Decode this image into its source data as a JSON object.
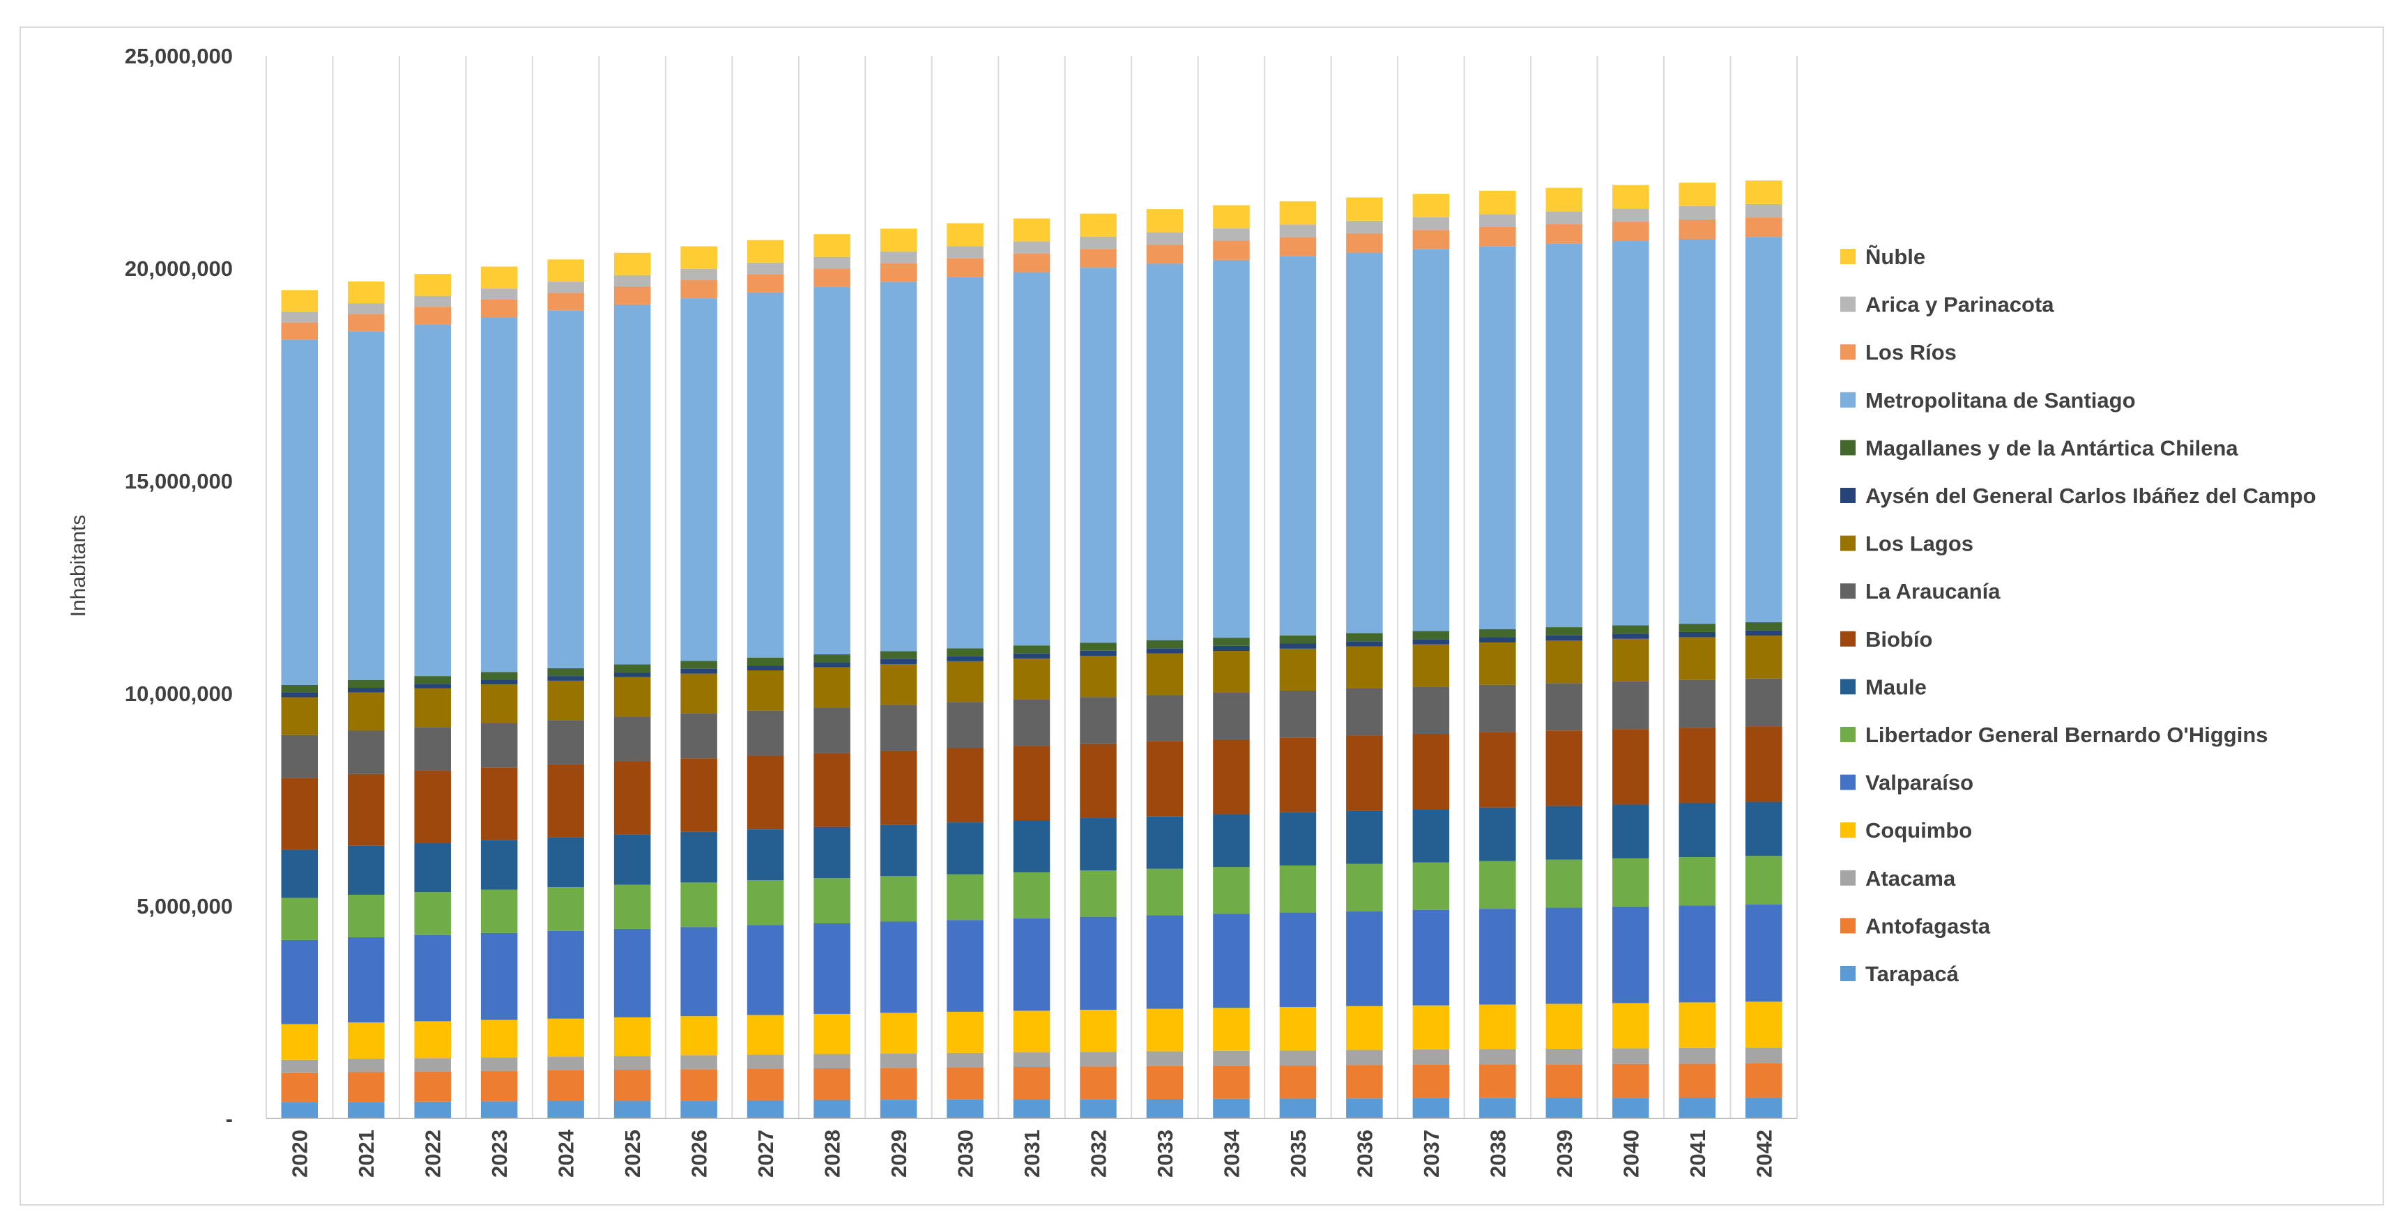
{
  "chart_data": {
    "type": "bar",
    "stacked": true,
    "title": "",
    "xlabel": "",
    "ylabel": "Inhabitants",
    "ylim": [
      0,
      25000000
    ],
    "yticks": [
      0,
      5000000,
      10000000,
      15000000,
      20000000,
      25000000
    ],
    "ytick_labels": [
      "-",
      "5,000,000",
      "10,000,000",
      "15,000,000",
      "20,000,000",
      "25,000,000"
    ],
    "grid": "vertical-category-lines",
    "legend_position": "right",
    "categories": [
      "2020",
      "2021",
      "2022",
      "2023",
      "2024",
      "2025",
      "2026",
      "2027",
      "2028",
      "2029",
      "2030",
      "2031",
      "2032",
      "2033",
      "2034",
      "2035",
      "2036",
      "2037",
      "2038",
      "2039",
      "2040",
      "2041",
      "2042"
    ],
    "series": [
      {
        "name": "Tarapacá",
        "color": "#5b9bd5",
        "values": [
          380000,
          390000,
          397000,
          404000,
          410000,
          417000,
          423000,
          429000,
          434000,
          440000,
          445000,
          450000,
          455000,
          459000,
          464000,
          468000,
          472000,
          476000,
          480000,
          483000,
          487000,
          490000,
          494000
        ]
      },
      {
        "name": "Antofagasta",
        "color": "#ed7d31",
        "values": [
          690000,
          700000,
          708000,
          716000,
          723000,
          730000,
          736000,
          742000,
          748000,
          753000,
          758000,
          763000,
          768000,
          772000,
          776000,
          780000,
          784000,
          787000,
          790000,
          793000,
          796000,
          799000,
          802000
        ]
      },
      {
        "name": "Atacama",
        "color": "#a5a5a5",
        "values": [
          310000,
          313000,
          316000,
          319000,
          322000,
          325000,
          328000,
          331000,
          334000,
          337000,
          340000,
          343000,
          346000,
          349000,
          352000,
          354000,
          357000,
          359000,
          362000,
          364000,
          366000,
          368000,
          370000
        ]
      },
      {
        "name": "Coquimbo",
        "color": "#ffc000",
        "values": [
          840000,
          855000,
          868000,
          881000,
          894000,
          907000,
          920000,
          932000,
          944000,
          956000,
          967000,
          978000,
          989000,
          1000000,
          1010000,
          1020000,
          1030000,
          1039000,
          1048000,
          1057000,
          1066000,
          1074000,
          1082000
        ]
      },
      {
        "name": "Valparaíso",
        "color": "#4472c4",
        "values": [
          1980000,
          2005000,
          2025000,
          2045000,
          2063000,
          2081000,
          2098000,
          2114000,
          2130000,
          2145000,
          2159000,
          2173000,
          2186000,
          2198000,
          2210000,
          2221000,
          2232000,
          2242000,
          2252000,
          2261000,
          2270000,
          2278000,
          2286000
        ]
      },
      {
        "name": "Libertador General Bernardo O'Higgins",
        "color": "#70ad47",
        "values": [
          990000,
          1000000,
          1010000,
          1020000,
          1029000,
          1038000,
          1046000,
          1054000,
          1062000,
          1070000,
          1077000,
          1084000,
          1091000,
          1097000,
          1103000,
          1109000,
          1114000,
          1120000,
          1125000,
          1130000,
          1134000,
          1139000,
          1143000
        ]
      },
      {
        "name": "Maule",
        "color": "#255e91",
        "values": [
          1140000,
          1150000,
          1159000,
          1168000,
          1176000,
          1184000,
          1192000,
          1199000,
          1206000,
          1213000,
          1219000,
          1225000,
          1231000,
          1236000,
          1241000,
          1246000,
          1251000,
          1255000,
          1259000,
          1263000,
          1267000,
          1270000,
          1273000
        ]
      },
      {
        "name": "Biobío",
        "color": "#9e480e",
        "values": [
          1680000,
          1690000,
          1698000,
          1706000,
          1713000,
          1720000,
          1726000,
          1732000,
          1738000,
          1743000,
          1748000,
          1752000,
          1756000,
          1760000,
          1763000,
          1766000,
          1769000,
          1771000,
          1773000,
          1775000,
          1776000,
          1777000,
          1778000
        ]
      },
      {
        "name": "La Araucanía",
        "color": "#636363",
        "values": [
          1010000,
          1020000,
          1028000,
          1036000,
          1043000,
          1050000,
          1057000,
          1063000,
          1069000,
          1075000,
          1080000,
          1085000,
          1090000,
          1094000,
          1098000,
          1102000,
          1106000,
          1109000,
          1112000,
          1115000,
          1118000,
          1120000,
          1122000
        ]
      },
      {
        "name": "Los Lagos",
        "color": "#997300",
        "values": [
          890000,
          900000,
          908000,
          916000,
          924000,
          931000,
          938000,
          945000,
          951000,
          957000,
          963000,
          968000,
          973000,
          978000,
          982000,
          986000,
          990000,
          994000,
          997000,
          1000000,
          1003000,
          1006000,
          1008000
        ]
      },
      {
        "name": "Aysén del General Carlos Ibáñez del Campo",
        "color": "#264478",
        "values": [
          107000,
          108000,
          109000,
          110000,
          111000,
          112000,
          113000,
          114000,
          115000,
          116000,
          116000,
          117000,
          118000,
          118000,
          119000,
          120000,
          120000,
          121000,
          121000,
          122000,
          122000,
          123000,
          123000
        ]
      },
      {
        "name": "Magallanes y de la Antártica Chilena",
        "color": "#43682b",
        "values": [
          180000,
          181000,
          182000,
          183000,
          184000,
          185000,
          186000,
          187000,
          188000,
          188000,
          189000,
          190000,
          190000,
          191000,
          191000,
          192000,
          192000,
          193000,
          193000,
          193000,
          194000,
          194000,
          194000
        ]
      },
      {
        "name": "Metropolitana de Santiago",
        "color": "#7cafdd",
        "values": [
          8120000,
          8200000,
          8270000,
          8340000,
          8410000,
          8470000,
          8530000,
          8590000,
          8640000,
          8690000,
          8740000,
          8780000,
          8820000,
          8860000,
          8890000,
          8920000,
          8950000,
          8980000,
          9000000,
          9020000,
          9040000,
          9050000,
          9060000
        ]
      },
      {
        "name": "Los Ríos",
        "color": "#f1975a",
        "values": [
          410000,
          413000,
          416000,
          419000,
          422000,
          425000,
          428000,
          431000,
          434000,
          437000,
          440000,
          442000,
          444000,
          446000,
          448000,
          450000,
          452000,
          454000,
          456000,
          457000,
          458000,
          459000,
          460000
        ]
      },
      {
        "name": "Arica y Parinacota",
        "color": "#b7b7b7",
        "values": [
          250000,
          253000,
          256000,
          259000,
          262000,
          265000,
          268000,
          271000,
          274000,
          277000,
          280000,
          283000,
          286000,
          289000,
          292000,
          295000,
          298000,
          301000,
          304000,
          307000,
          310000,
          313000,
          316000
        ]
      },
      {
        "name": "Ñuble",
        "color": "#ffcd33",
        "values": [
          510000,
          513000,
          516000,
          519000,
          522000,
          525000,
          528000,
          531000,
          534000,
          536000,
          538000,
          540000,
          542000,
          544000,
          546000,
          548000,
          549000,
          550000,
          551000,
          552000,
          553000,
          554000,
          555000
        ]
      }
    ]
  }
}
